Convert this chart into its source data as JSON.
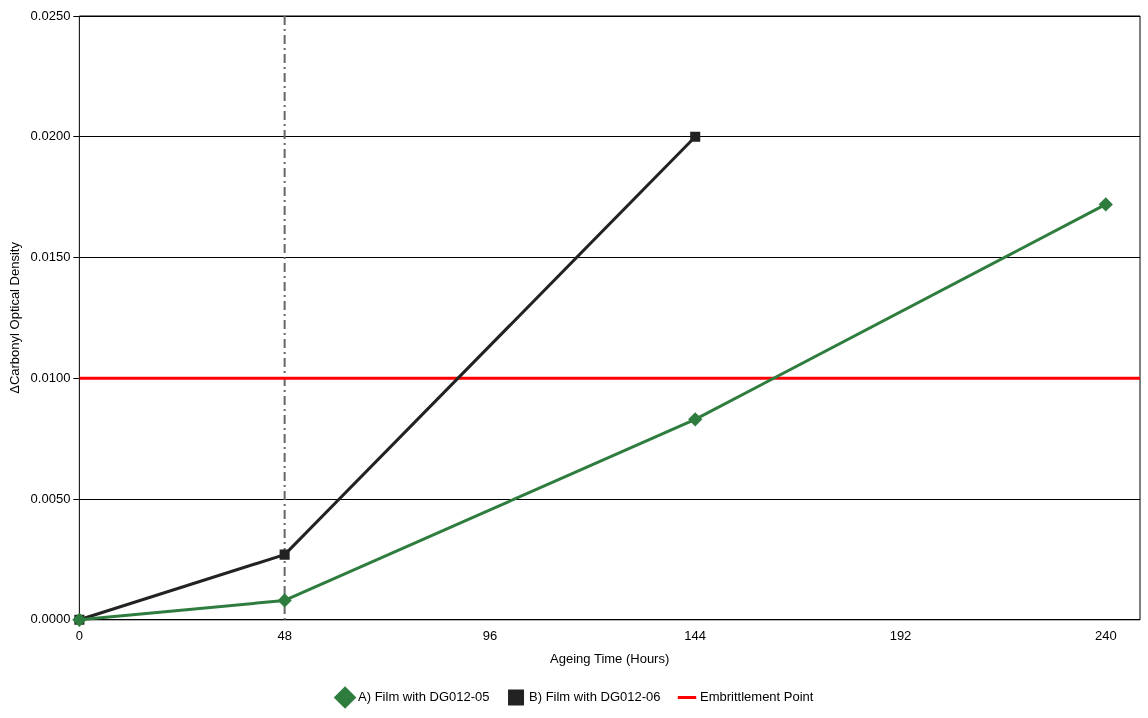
{
  "chart_data": {
    "type": "line",
    "xlabel": "Ageing Time (Hours)",
    "ylabel": "ΔCarbonyl Optical Density",
    "series": [
      {
        "name": "A) Film with DG012-05",
        "color": "#2e7d3e",
        "marker": "diamond",
        "x": [
          0,
          48,
          144,
          240
        ],
        "values": [
          0,
          0.0008,
          0.0083,
          0.0172
        ]
      },
      {
        "name": "B) Film with DG012-06",
        "color": "#222222",
        "marker": "square",
        "x": [
          0,
          48,
          144
        ],
        "values": [
          0,
          0.0027,
          0.02
        ]
      }
    ],
    "ref_lines": [
      {
        "axis": "y",
        "value": 0.01,
        "label": "Embrittlement Point",
        "color": "#ff0000",
        "line_style": "solid"
      },
      {
        "axis": "x",
        "value": 48,
        "color": "#666666",
        "line_style": "dashed"
      }
    ],
    "xlim": [
      0,
      248
    ],
    "xticks": [
      0,
      48,
      96,
      144,
      192,
      240
    ],
    "ylim": [
      0,
      0.025
    ],
    "yticks": [
      {
        "value": 0,
        "label": "0.0000"
      },
      {
        "value": 0.005,
        "label": "0.0050"
      },
      {
        "value": 0.01,
        "label": "0.0100"
      },
      {
        "value": 0.015,
        "label": "0.0150"
      },
      {
        "value": 0.02,
        "label": "0.0200"
      },
      {
        "value": 0.025,
        "label": "0.0250"
      }
    ],
    "grid": "y",
    "legend": "bottom"
  }
}
